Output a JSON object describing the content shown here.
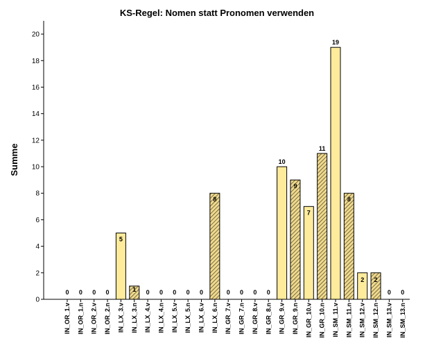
{
  "chart_data": {
    "type": "bar",
    "title": "KS-Regel: Nomen statt Pronomen verwenden",
    "xlabel": "",
    "ylabel": "Summe",
    "ylim": [
      0,
      21
    ],
    "yticks": [
      0,
      2,
      4,
      6,
      8,
      10,
      12,
      14,
      16,
      18,
      20
    ],
    "categories": [
      "IN_OR_1.v",
      "IN_OR_1.n",
      "IN_OR_2.v",
      "IN_OR_2.n",
      "IN_LX_3.v",
      "IN_LX_3.n",
      "IN_LX_4.v",
      "IN_LX_4.n",
      "IN_LX_5.v",
      "IN_LX_5.n",
      "IN_LX_6.v",
      "IN_LX_6.n",
      "IN_GR_7.v",
      "IN_GR_7.n",
      "IN_GR_8.v",
      "IN_GR_8.n",
      "IN_GR_9.v",
      "IN_GR_9.n",
      "IN_GR_10.v",
      "IN_GR_10.n",
      "IN_SM_11.v",
      "IN_SM_11.n",
      "IN_SM_12.v",
      "IN_SM_12.n",
      "IN_SM_13.v",
      "IN_SM_13.n"
    ],
    "values": [
      0,
      0,
      0,
      0,
      5,
      1,
      0,
      0,
      0,
      0,
      0,
      8,
      0,
      0,
      0,
      0,
      10,
      9,
      7,
      11,
      19,
      8,
      2,
      2,
      0,
      0
    ],
    "styles": [
      "plain",
      "plain",
      "plain",
      "plain",
      "plain",
      "hatched",
      "plain",
      "plain",
      "plain",
      "plain",
      "plain",
      "hatched",
      "plain",
      "plain",
      "plain",
      "plain",
      "plain",
      "hatched",
      "plain",
      "hatched",
      "plain",
      "hatched",
      "plain",
      "hatched",
      "plain",
      "plain"
    ],
    "grid": false,
    "legend": "none",
    "colors": {
      "bar_fill": "#ffeb9c",
      "hatch_fill": "#efd98c",
      "bar_stroke": "#000000",
      "hatch_line": "#3a3420"
    }
  }
}
